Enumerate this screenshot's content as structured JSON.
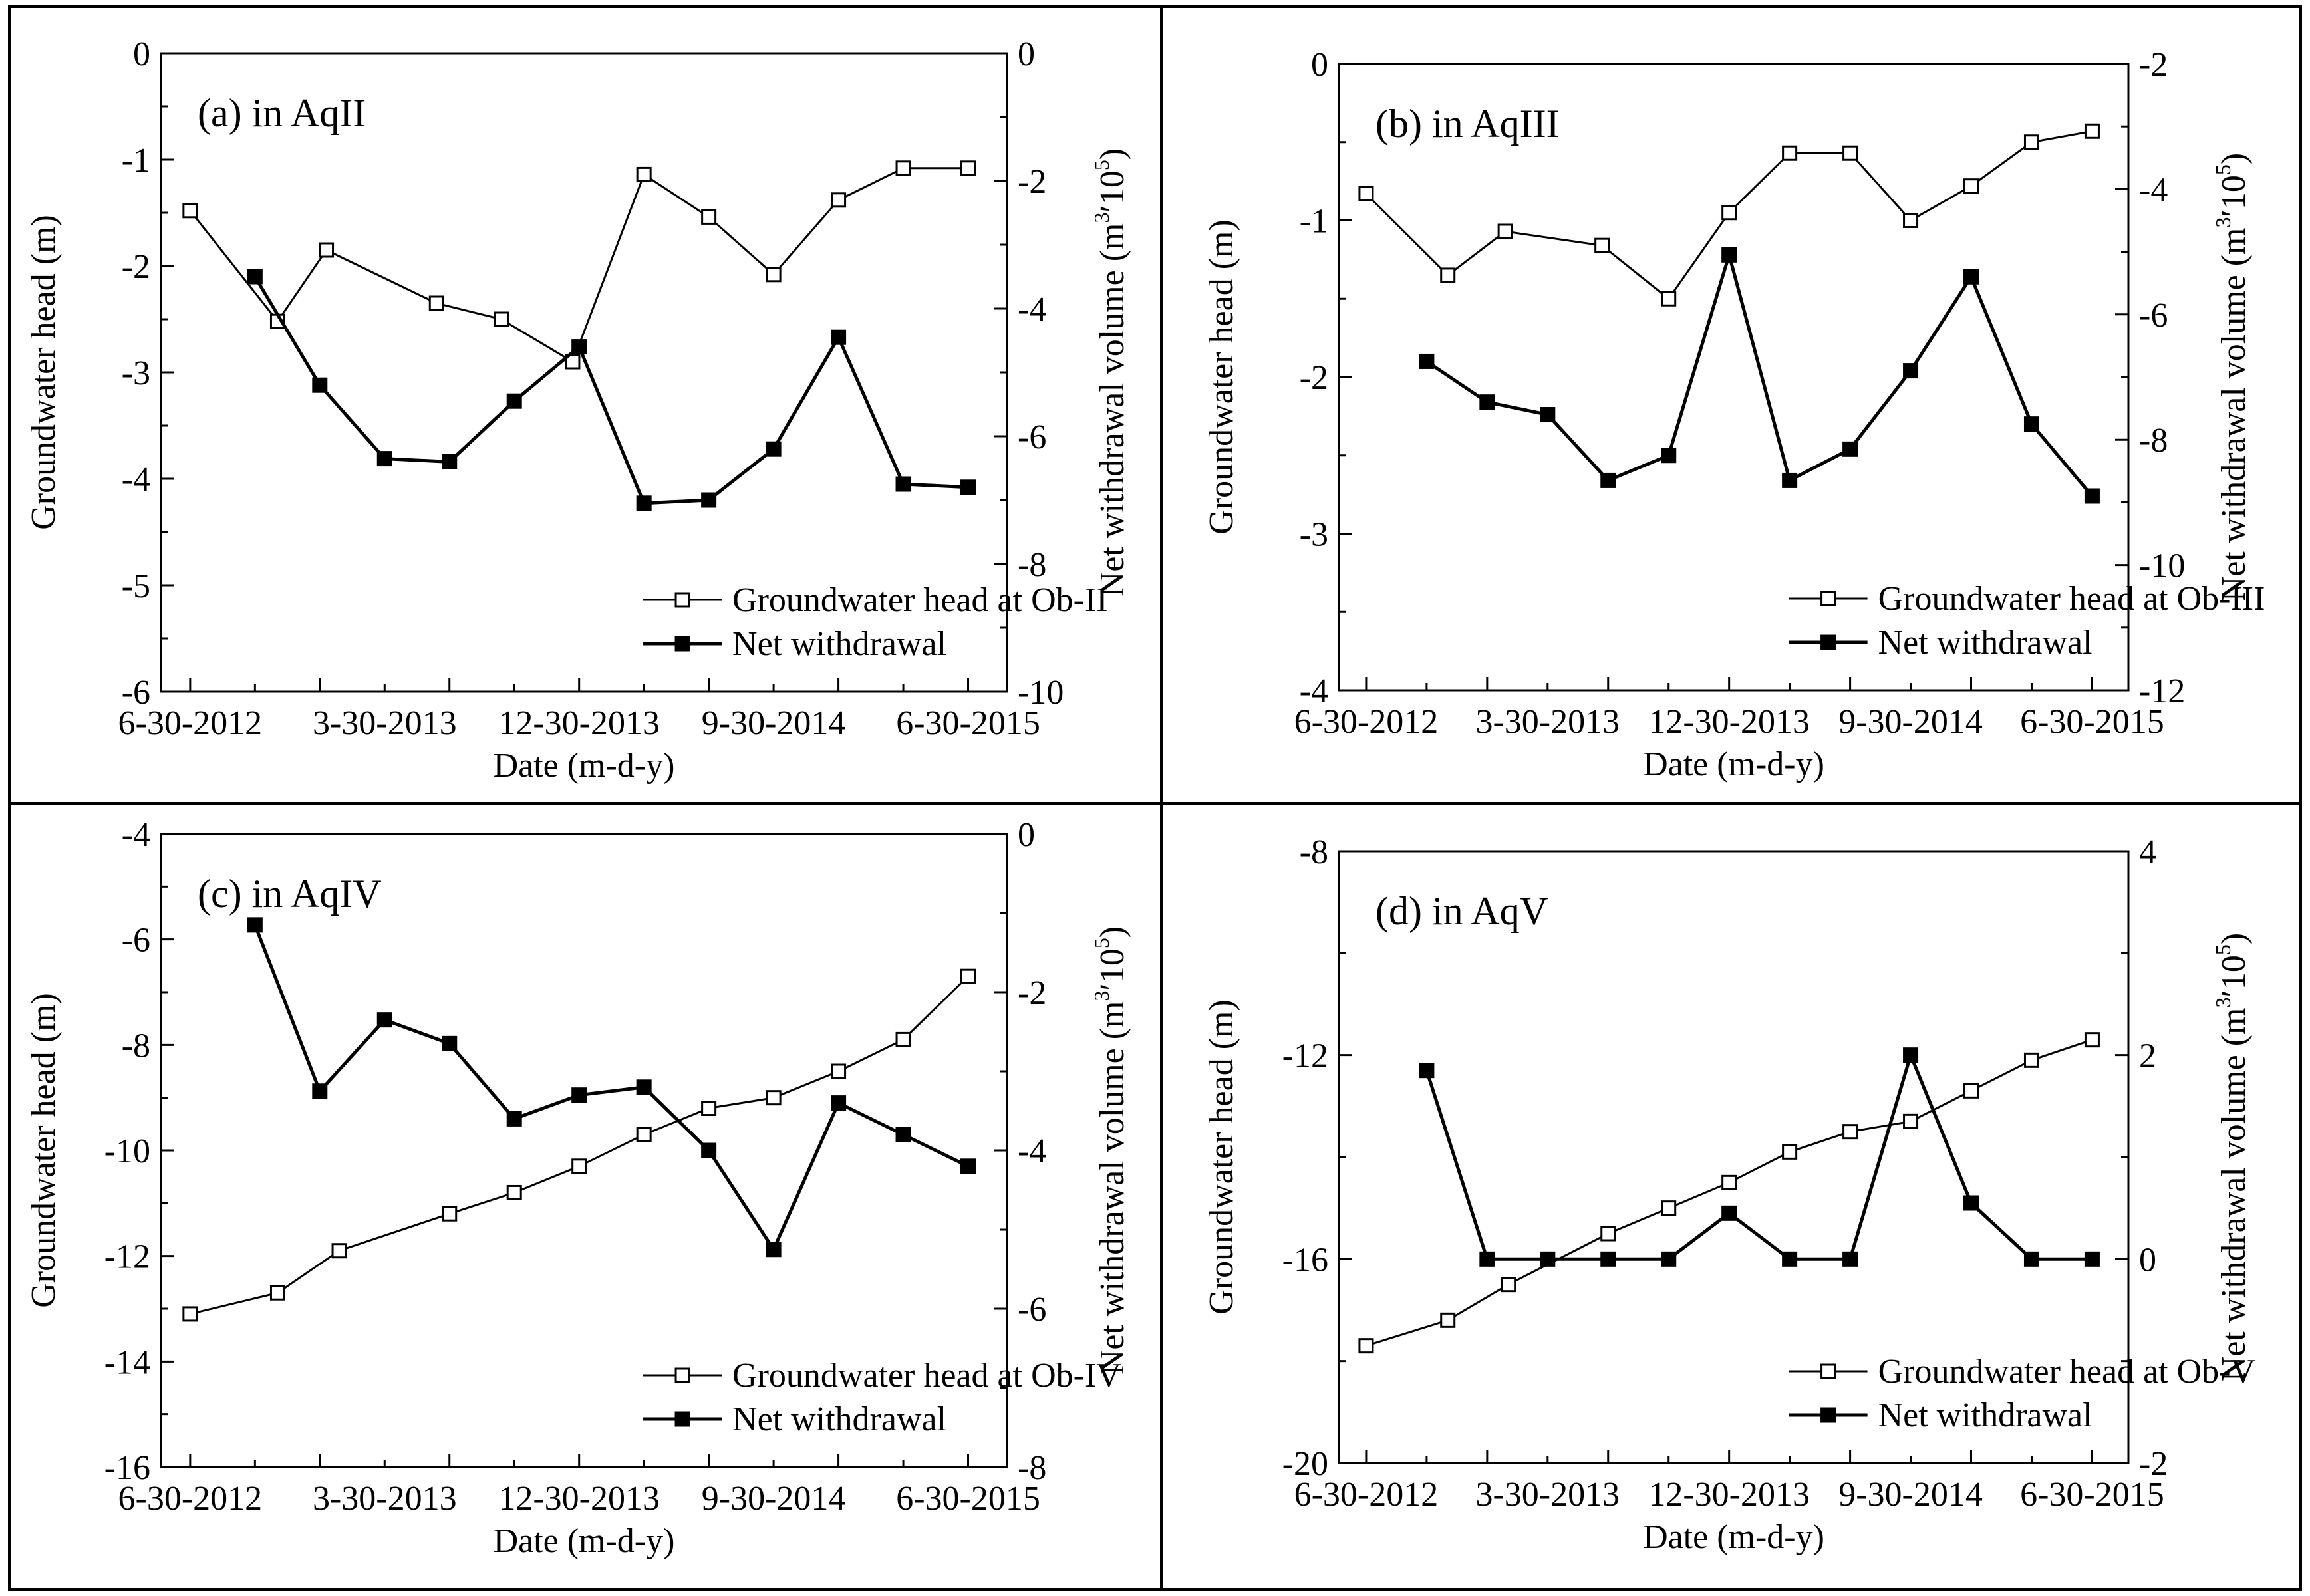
{
  "figure": {
    "x_label": "Date (m-d-y)",
    "y_left_label": "Groundwater head (m)",
    "y_right_label_main": "Net withdrawal volume (m",
    "y_right_sup1": "3",
    "y_right_mid": "′",
    "y_right_base": "10",
    "y_right_sup2": "5",
    "y_right_close": ")",
    "x_ticks": [
      "6-30-2012",
      "3-30-2013",
      "12-30-2013",
      "9-30-2014",
      "6-30-2015"
    ],
    "series_colors": {
      "head": "#000000",
      "withdrawal": "#000000"
    }
  },
  "chart_data": [
    {
      "type": "line",
      "title": "(a) in AqII",
      "xlabel": "Date (m-d-y)",
      "ylabel": "Groundwater head (m)",
      "y2label": "Net withdrawal volume (m3′105)",
      "x_ticks": [
        "6-30-2012",
        "3-30-2013",
        "12-30-2013",
        "9-30-2014",
        "6-30-2015"
      ],
      "ylim": [
        -6,
        0
      ],
      "yticks": [
        0,
        -1,
        -2,
        -3,
        -4,
        -5,
        -6
      ],
      "y2lim": [
        -10,
        0
      ],
      "y2ticks": [
        0,
        -2,
        -4,
        -6,
        -8,
        -10
      ],
      "legend_position": "bottom-right",
      "series": [
        {
          "name": "Groundwater head at Ob-II",
          "axis": "left",
          "marker": "open-square",
          "x": [
            0,
            1.35,
            2.1,
            3.8,
            4.8,
            5.9,
            7.0,
            8.0,
            9.0,
            10.0,
            11.0,
            12.0
          ],
          "values": [
            -1.48,
            -2.52,
            -1.85,
            -2.35,
            -2.5,
            -2.9,
            -1.14,
            -1.54,
            -2.08,
            -1.38,
            -1.08,
            -1.08
          ]
        },
        {
          "name": "Net withdrawal",
          "axis": "right",
          "marker": "filled-square",
          "x": [
            1.0,
            2.0,
            3.0,
            4.0,
            5.0,
            6.0,
            7.0,
            8.0,
            9.0,
            10.0,
            11.0,
            12.0
          ],
          "values": [
            -3.5,
            -5.2,
            -6.35,
            -6.4,
            -5.45,
            -4.6,
            -7.05,
            -7.0,
            -6.2,
            -4.45,
            -6.75,
            -6.8
          ]
        }
      ]
    },
    {
      "type": "line",
      "title": "(b) in AqIII",
      "xlabel": "Date (m-d-y)",
      "ylabel": "Groundwater head (m)",
      "y2label": "Net withdrawal volume (m3′105)",
      "x_ticks": [
        "6-30-2012",
        "3-30-2013",
        "12-30-2013",
        "9-30-2014",
        "6-30-2015"
      ],
      "ylim": [
        -4,
        0
      ],
      "yticks": [
        0,
        -1,
        -2,
        -3,
        -4
      ],
      "y2lim": [
        -12,
        -2
      ],
      "y2ticks": [
        -2,
        -4,
        -6,
        -8,
        -10,
        -12
      ],
      "legend_position": "bottom-right",
      "series": [
        {
          "name": "Groundwater head at Ob-III",
          "axis": "left",
          "marker": "open-square",
          "x": [
            0,
            1.35,
            2.3,
            3.9,
            5.0,
            6.0,
            7.0,
            8.0,
            9.0,
            10.0,
            11.0,
            12.0
          ],
          "values": [
            -0.83,
            -1.35,
            -1.07,
            -1.16,
            -1.5,
            -0.95,
            -0.57,
            -0.57,
            -1.0,
            -0.78,
            -0.5,
            -0.43
          ]
        },
        {
          "name": "Net withdrawal",
          "axis": "right",
          "marker": "filled-square",
          "x": [
            1.0,
            2.0,
            3.0,
            4.0,
            5.0,
            6.0,
            7.0,
            8.0,
            9.0,
            10.0,
            11.0,
            12.0
          ],
          "values": [
            -6.75,
            -7.4,
            -7.6,
            -8.65,
            -8.25,
            -5.05,
            -8.65,
            -8.15,
            -6.9,
            -5.4,
            -7.75,
            -8.9
          ]
        }
      ]
    },
    {
      "type": "line",
      "title": "(c) in AqIV",
      "xlabel": "Date (m-d-y)",
      "ylabel": "Groundwater head (m)",
      "y2label": "Net withdrawal volume (m3′105)",
      "x_ticks": [
        "6-30-2012",
        "3-30-2013",
        "12-30-2013",
        "9-30-2014",
        "6-30-2015"
      ],
      "ylim": [
        -16,
        -4
      ],
      "yticks": [
        -4,
        -6,
        -8,
        -10,
        -12,
        -14,
        -16
      ],
      "y2lim": [
        -8,
        0
      ],
      "y2ticks": [
        0,
        -2,
        -4,
        -6,
        -8
      ],
      "legend_position": "bottom-right",
      "series": [
        {
          "name": "Groundwater head at Ob-IV",
          "axis": "left",
          "marker": "open-square",
          "x": [
            0,
            1.35,
            2.3,
            4.0,
            5.0,
            6.0,
            7.0,
            8.0,
            9.0,
            10.0,
            11.0,
            12.0
          ],
          "values": [
            -13.1,
            -12.7,
            -11.9,
            -11.2,
            -10.8,
            -10.3,
            -9.7,
            -9.2,
            -9.0,
            -8.5,
            -7.9,
            -6.7
          ]
        },
        {
          "name": "Net withdrawal",
          "axis": "right",
          "marker": "filled-square",
          "x": [
            1.0,
            2.0,
            3.0,
            4.0,
            5.0,
            6.0,
            7.0,
            8.0,
            9.0,
            10.0,
            11.0,
            12.0
          ],
          "values": [
            -1.15,
            -3.25,
            -2.35,
            -2.65,
            -3.6,
            -3.3,
            -3.2,
            -4.0,
            -5.25,
            -3.4,
            -3.8,
            -4.2
          ]
        }
      ]
    },
    {
      "type": "line",
      "title": "(d) in AqV",
      "xlabel": "Date (m-d-y)",
      "ylabel": "Groundwater head (m)",
      "y2label": "Net withdrawal volume (m3′105)",
      "x_ticks": [
        "6-30-2012",
        "3-30-2013",
        "12-30-2013",
        "9-30-2014",
        "6-30-2015"
      ],
      "ylim": [
        -20,
        -8
      ],
      "yticks": [
        -8,
        -12,
        -16,
        -20
      ],
      "y2lim": [
        -2,
        4
      ],
      "y2ticks": [
        4,
        2,
        0,
        -2
      ],
      "legend_position": "bottom-right",
      "series": [
        {
          "name": "Groundwater head at Ob-V",
          "axis": "left",
          "marker": "open-square",
          "x": [
            0,
            1.35,
            2.35,
            4.0,
            5.0,
            6.0,
            7.0,
            8.0,
            9.0,
            10.0,
            11.0,
            12.0
          ],
          "values": [
            -17.7,
            -17.2,
            -16.5,
            -15.5,
            -15.0,
            -14.5,
            -13.9,
            -13.5,
            -13.3,
            -12.7,
            -12.1,
            -11.7
          ]
        },
        {
          "name": "Net withdrawal",
          "axis": "right",
          "marker": "filled-square",
          "x": [
            1.0,
            2.0,
            3.0,
            4.0,
            5.0,
            6.0,
            7.0,
            8.0,
            9.0,
            10.0,
            11.0,
            12.0
          ],
          "values": [
            1.85,
            0,
            0,
            0,
            0,
            0.45,
            0,
            0,
            2.0,
            0.55,
            0,
            0
          ]
        }
      ]
    }
  ]
}
